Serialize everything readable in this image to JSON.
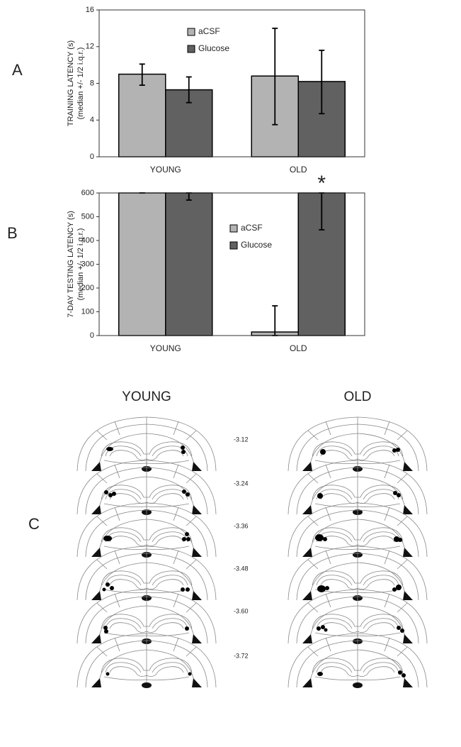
{
  "chart_data": [
    {
      "type": "bar",
      "panel_label": "A",
      "y_label": "TRAINING LATENCY (s)",
      "y_label_note": "(median +/- 1/2 i.q.r.)",
      "categories": [
        "YOUNG",
        "OLD"
      ],
      "series": [
        {
          "name": "aCSF",
          "color": "#b3b3b3",
          "values": [
            9,
            8.8
          ],
          "error_low": [
            7.8,
            3.5
          ],
          "error_high": [
            10.1,
            14
          ]
        },
        {
          "name": "Glucose",
          "color": "#616161",
          "values": [
            7.3,
            8.2
          ],
          "error_low": [
            5.9,
            4.7
          ],
          "error_high": [
            8.7,
            11.6
          ]
        }
      ],
      "ylim": [
        0,
        16
      ],
      "yticks": [
        0,
        4,
        8,
        12,
        16
      ],
      "legend": "top-center"
    },
    {
      "type": "bar",
      "panel_label": "B",
      "y_label": "7-DAY TESTING LATENCY (s)",
      "y_label_note": "(median +/- 1/2 i.q.r.)",
      "categories": [
        "YOUNG",
        "OLD"
      ],
      "series": [
        {
          "name": "aCSF",
          "color": "#b3b3b3",
          "values": [
            600,
            15
          ],
          "error_low": [
            600,
            0
          ],
          "error_high": [
            600,
            125
          ]
        },
        {
          "name": "Glucose",
          "color": "#616161",
          "values": [
            600,
            600
          ],
          "error_low": [
            570,
            445
          ],
          "error_high": [
            600,
            600
          ]
        }
      ],
      "ylim": [
        0,
        600
      ],
      "yticks": [
        0,
        100,
        200,
        300,
        400,
        500,
        600
      ],
      "legend": "center",
      "annotation": "*"
    }
  ],
  "panel_c": {
    "panel_label": "C",
    "columns": [
      "YOUNG",
      "OLD"
    ],
    "levels": [
      "-3.12",
      "-3.24",
      "-3.36",
      "-3.48",
      "-3.60",
      "-3.72"
    ]
  }
}
